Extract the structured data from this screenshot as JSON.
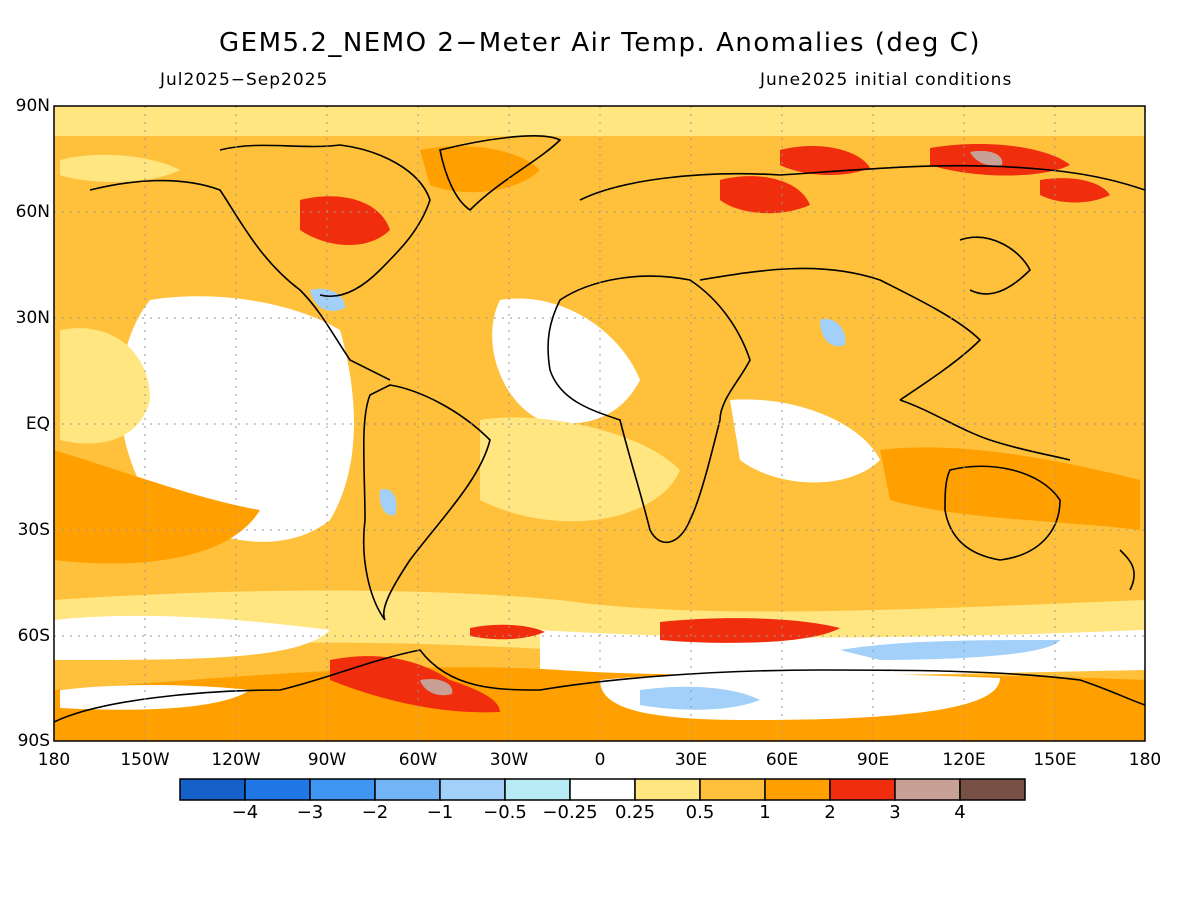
{
  "header": {
    "title": "GEM5.2_NEMO 2−Meter Air Temp. Anomalies (deg C)",
    "period": "Jul2025−Sep2025",
    "init": "June2025 initial conditions"
  },
  "axes": {
    "lat_labels": [
      "90N",
      "60N",
      "30N",
      "EQ",
      "30S",
      "60S",
      "90S"
    ],
    "lon_labels": [
      "180",
      "150W",
      "120W",
      "90W",
      "60W",
      "30W",
      "0",
      "30E",
      "60E",
      "90E",
      "120E",
      "150E",
      "180"
    ]
  },
  "colorbar": {
    "colors": [
      "#1560c9",
      "#1f78e6",
      "#3e96f2",
      "#73b4f6",
      "#a2d0f9",
      "#b8ebf6",
      "#ffffff",
      "#ffe680",
      "#ffc03c",
      "#ffa000",
      "#f02d0c",
      "#c8a096",
      "#785046"
    ],
    "labels": [
      "−4",
      "−3",
      "−2",
      "−1",
      "−0.5",
      "−0.25",
      "0.25",
      "0.5",
      "1",
      "2",
      "3",
      "4"
    ]
  }
}
